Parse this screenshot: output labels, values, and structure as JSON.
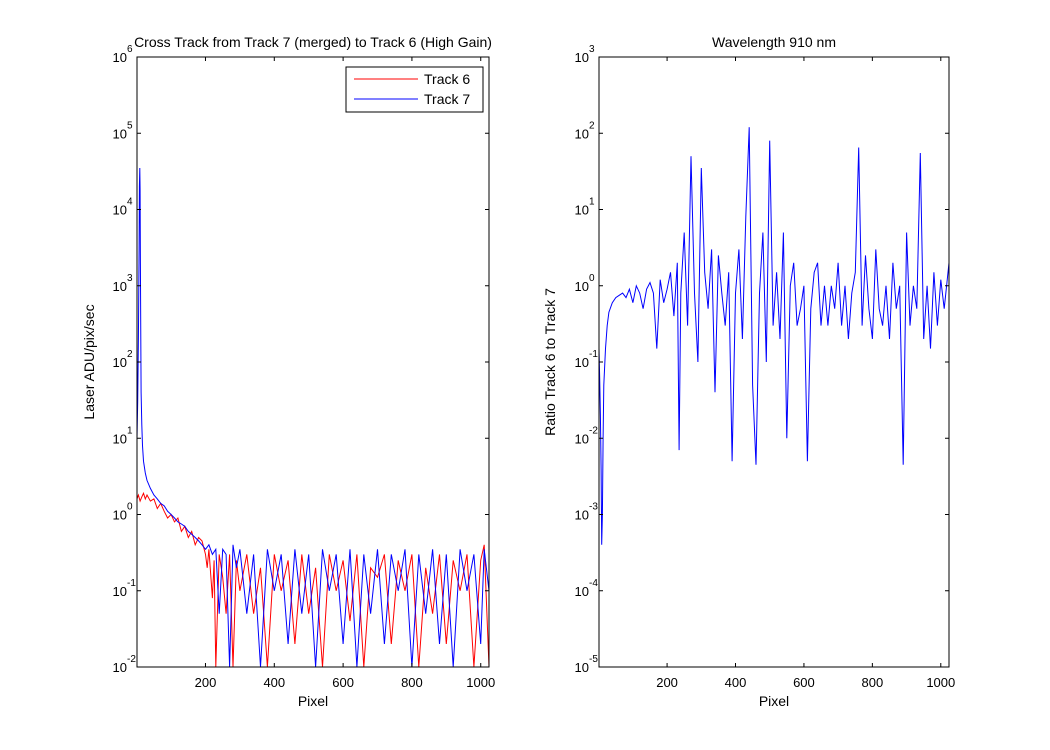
{
  "chart_data": [
    {
      "type": "line",
      "title": "Cross Track from Track 7 (merged) to Track 6 (High Gain)",
      "xlabel": "Pixel",
      "ylabel": "Laser ADU/pix/sec",
      "xlim": [
        1,
        1024
      ],
      "ylim": [
        0.01,
        1000000
      ],
      "yscale": "log",
      "grid": false,
      "legend_position": "top-right",
      "x_ticks": [
        200,
        400,
        600,
        800,
        1000
      ],
      "x_tick_labels": [
        "200",
        "400",
        "600",
        "800",
        "1000"
      ],
      "y_ticks": [
        0.01,
        0.1,
        1,
        10,
        100,
        1000,
        10000,
        100000,
        1000000
      ],
      "y_tick_exponents": [
        "-2",
        "-1",
        "0",
        "1",
        "2",
        "3",
        "4",
        "5",
        "6"
      ],
      "y_tick_base": "10",
      "series": [
        {
          "name": "Track 6",
          "color": "#ff0000",
          "x": [
            1,
            5,
            10,
            15,
            20,
            25,
            30,
            40,
            50,
            60,
            70,
            80,
            90,
            100,
            110,
            120,
            130,
            140,
            150,
            160,
            170,
            180,
            190,
            200,
            205,
            210,
            220,
            225,
            230,
            240,
            250,
            260,
            270,
            280,
            290,
            300,
            320,
            340,
            360,
            380,
            400,
            420,
            440,
            460,
            480,
            500,
            520,
            540,
            560,
            580,
            600,
            620,
            640,
            660,
            680,
            700,
            720,
            740,
            760,
            780,
            800,
            820,
            840,
            860,
            880,
            900,
            920,
            940,
            960,
            980,
            1000,
            1010,
            1024
          ],
          "values": [
            1.6,
            1.8,
            1.5,
            1.7,
            1.9,
            1.6,
            1.8,
            1.5,
            1.6,
            1.2,
            1.4,
            1.1,
            0.9,
            1.0,
            0.8,
            0.9,
            0.6,
            0.7,
            0.5,
            0.6,
            0.4,
            0.5,
            0.45,
            0.3,
            0.2,
            0.35,
            0.08,
            0.25,
            0.01,
            0.3,
            0.15,
            0.05,
            0.3,
            0.01,
            0.25,
            0.1,
            0.3,
            0.05,
            0.2,
            0.01,
            0.3,
            0.1,
            0.25,
            0.02,
            0.3,
            0.05,
            0.2,
            0.01,
            0.3,
            0.1,
            0.25,
            0.04,
            0.3,
            0.01,
            0.2,
            0.15,
            0.3,
            0.02,
            0.25,
            0.1,
            0.3,
            0.01,
            0.2,
            0.05,
            0.3,
            0.02,
            0.25,
            0.1,
            0.3,
            0.01,
            0.25,
            0.4,
            0.01
          ]
        },
        {
          "name": "Track 7",
          "color": "#0000ff",
          "x": [
            1,
            3,
            5,
            7,
            8,
            9,
            10,
            11,
            12,
            13,
            15,
            17,
            20,
            25,
            30,
            40,
            50,
            60,
            70,
            80,
            90,
            100,
            110,
            120,
            130,
            140,
            150,
            160,
            170,
            180,
            190,
            200,
            210,
            220,
            230,
            240,
            250,
            260,
            270,
            280,
            290,
            300,
            320,
            340,
            360,
            380,
            400,
            420,
            440,
            460,
            480,
            500,
            520,
            540,
            560,
            580,
            600,
            620,
            640,
            660,
            680,
            700,
            720,
            740,
            760,
            780,
            800,
            820,
            840,
            860,
            880,
            900,
            920,
            940,
            960,
            980,
            1000,
            1010,
            1024
          ],
          "values": [
            10,
            30,
            200,
            3000,
            20000,
            35000,
            18000,
            2000,
            200,
            40,
            15,
            8,
            5,
            3.5,
            2.8,
            2.2,
            1.8,
            1.6,
            1.4,
            1.3,
            1.1,
            1.0,
            0.9,
            0.8,
            0.75,
            0.7,
            0.6,
            0.55,
            0.5,
            0.45,
            0.4,
            0.35,
            0.4,
            0.3,
            0.35,
            0.05,
            0.35,
            0.3,
            0.01,
            0.4,
            0.2,
            0.35,
            0.05,
            0.3,
            0.01,
            0.35,
            0.1,
            0.3,
            0.02,
            0.35,
            0.05,
            0.3,
            0.01,
            0.35,
            0.1,
            0.3,
            0.02,
            0.35,
            0.01,
            0.3,
            0.05,
            0.35,
            0.02,
            0.3,
            0.1,
            0.35,
            0.01,
            0.3,
            0.05,
            0.35,
            0.02,
            0.3,
            0.01,
            0.35,
            0.1,
            0.3,
            0.02,
            0.35,
            0.1
          ]
        }
      ]
    },
    {
      "type": "line",
      "title": "Wavelength 910 nm",
      "xlabel": "Pixel",
      "ylabel": "Ratio Track 6 to Track 7",
      "xlim": [
        1,
        1024
      ],
      "ylim": [
        1e-05,
        1000
      ],
      "yscale": "log",
      "grid": false,
      "x_ticks": [
        200,
        400,
        600,
        800,
        1000
      ],
      "x_tick_labels": [
        "200",
        "400",
        "600",
        "800",
        "1000"
      ],
      "y_ticks": [
        1e-05,
        0.0001,
        0.001,
        0.01,
        0.1,
        1,
        10,
        100,
        1000
      ],
      "y_tick_exponents": [
        "-5",
        "-4",
        "-3",
        "-2",
        "-1",
        "0",
        "1",
        "2",
        "3"
      ],
      "y_tick_base": "10",
      "series": [
        {
          "color": "#0000ff",
          "x": [
            1,
            3,
            5,
            7,
            9,
            11,
            13,
            15,
            20,
            25,
            30,
            40,
            50,
            60,
            70,
            80,
            90,
            100,
            110,
            120,
            130,
            140,
            150,
            160,
            170,
            180,
            190,
            200,
            210,
            220,
            230,
            235,
            240,
            250,
            260,
            270,
            280,
            290,
            300,
            310,
            320,
            330,
            340,
            350,
            360,
            370,
            380,
            390,
            400,
            410,
            420,
            430,
            440,
            450,
            460,
            470,
            480,
            490,
            500,
            510,
            520,
            530,
            540,
            550,
            560,
            570,
            580,
            590,
            600,
            610,
            620,
            630,
            640,
            650,
            660,
            670,
            680,
            690,
            700,
            710,
            720,
            730,
            740,
            750,
            760,
            770,
            780,
            790,
            800,
            810,
            820,
            830,
            840,
            850,
            860,
            870,
            880,
            890,
            900,
            910,
            920,
            930,
            940,
            950,
            960,
            970,
            980,
            990,
            1000,
            1010,
            1024
          ],
          "values": [
            0.15,
            0.06,
            0.02,
            0.004,
            0.0004,
            0.001,
            0.01,
            0.05,
            0.15,
            0.3,
            0.45,
            0.6,
            0.7,
            0.75,
            0.8,
            0.7,
            0.9,
            0.6,
            1.0,
            0.8,
            0.5,
            0.9,
            1.1,
            0.8,
            0.15,
            1.2,
            0.6,
            0.9,
            1.5,
            0.4,
            2.0,
            0.007,
            0.8,
            5.0,
            0.3,
            50,
            0.8,
            0.1,
            35,
            1.5,
            0.5,
            3.0,
            0.04,
            2.5,
            0.8,
            0.3,
            1.5,
            0.005,
            0.8,
            3.0,
            0.2,
            8.0,
            120,
            0.05,
            0.0045,
            0.8,
            5.0,
            0.1,
            80,
            0.3,
            1.5,
            0.2,
            5.0,
            0.01,
            1.0,
            2.0,
            0.3,
            0.5,
            1.0,
            0.005,
            0.5,
            1.5,
            2.0,
            0.3,
            1.0,
            0.3,
            1.0,
            0.5,
            2.0,
            0.3,
            1.0,
            0.2,
            0.8,
            1.5,
            65,
            0.3,
            2.5,
            0.5,
            0.2,
            3.0,
            0.5,
            0.3,
            1.0,
            0.2,
            2.0,
            0.5,
            1.0,
            0.0045,
            5.0,
            0.3,
            1.0,
            0.5,
            55,
            0.2,
            1.0,
            0.15,
            1.5,
            0.3,
            1.2,
            0.5,
            2.0
          ]
        }
      ]
    }
  ]
}
